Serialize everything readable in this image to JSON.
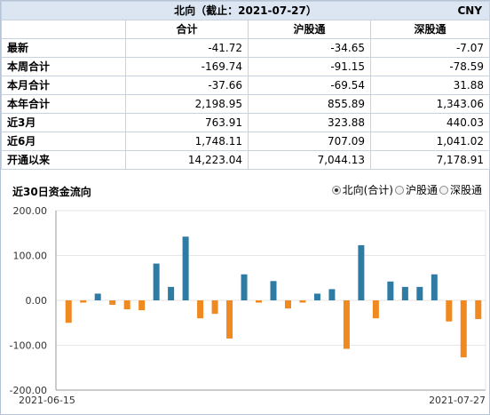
{
  "table": {
    "title": "北向（截止：2021-07-27）",
    "currency": "CNY",
    "columns": [
      "合计",
      "沪股通",
      "深股通"
    ],
    "rows": [
      {
        "label": "最新",
        "values": [
          "-41.72",
          "-34.65",
          "-7.07"
        ]
      },
      {
        "label": "本周合计",
        "values": [
          "-169.74",
          "-91.15",
          "-78.59"
        ]
      },
      {
        "label": "本月合计",
        "values": [
          "-37.66",
          "-69.54",
          "31.88"
        ]
      },
      {
        "label": "本年合计",
        "values": [
          "2,198.95",
          "855.89",
          "1,343.06"
        ]
      },
      {
        "label": "近3月",
        "values": [
          "763.91",
          "323.88",
          "440.03"
        ]
      },
      {
        "label": "近6月",
        "values": [
          "1,748.11",
          "707.09",
          "1,041.02"
        ]
      },
      {
        "label": "开通以来",
        "values": [
          "14,223.04",
          "7,044.13",
          "7,178.91"
        ]
      }
    ]
  },
  "chart_section": {
    "title": "近30日资金流向",
    "options": [
      {
        "label": "北向(合计)",
        "selected": true
      },
      {
        "label": "沪股通",
        "selected": false
      },
      {
        "label": "深股通",
        "selected": false
      }
    ]
  },
  "chart_data": {
    "type": "bar",
    "ylim": [
      -200,
      200
    ],
    "yticks": [
      "200.00",
      "100.00",
      "0.00",
      "-100.00",
      "-200.00"
    ],
    "x_start_label": "2021-06-15",
    "x_end_label": "2021-07-27",
    "colors": {
      "positive": "#2e7ba3",
      "negative": "#f0891f",
      "grid": "#e6e6e6",
      "axis": "#999999"
    },
    "values": [
      -50,
      -5,
      15,
      -10,
      -20,
      -22,
      82,
      30,
      142,
      -40,
      -30,
      -85,
      58,
      -5,
      43,
      -18,
      -5,
      15,
      25,
      -108,
      123,
      -40,
      42,
      30,
      30,
      58,
      -47,
      -127,
      -41.72
    ]
  }
}
